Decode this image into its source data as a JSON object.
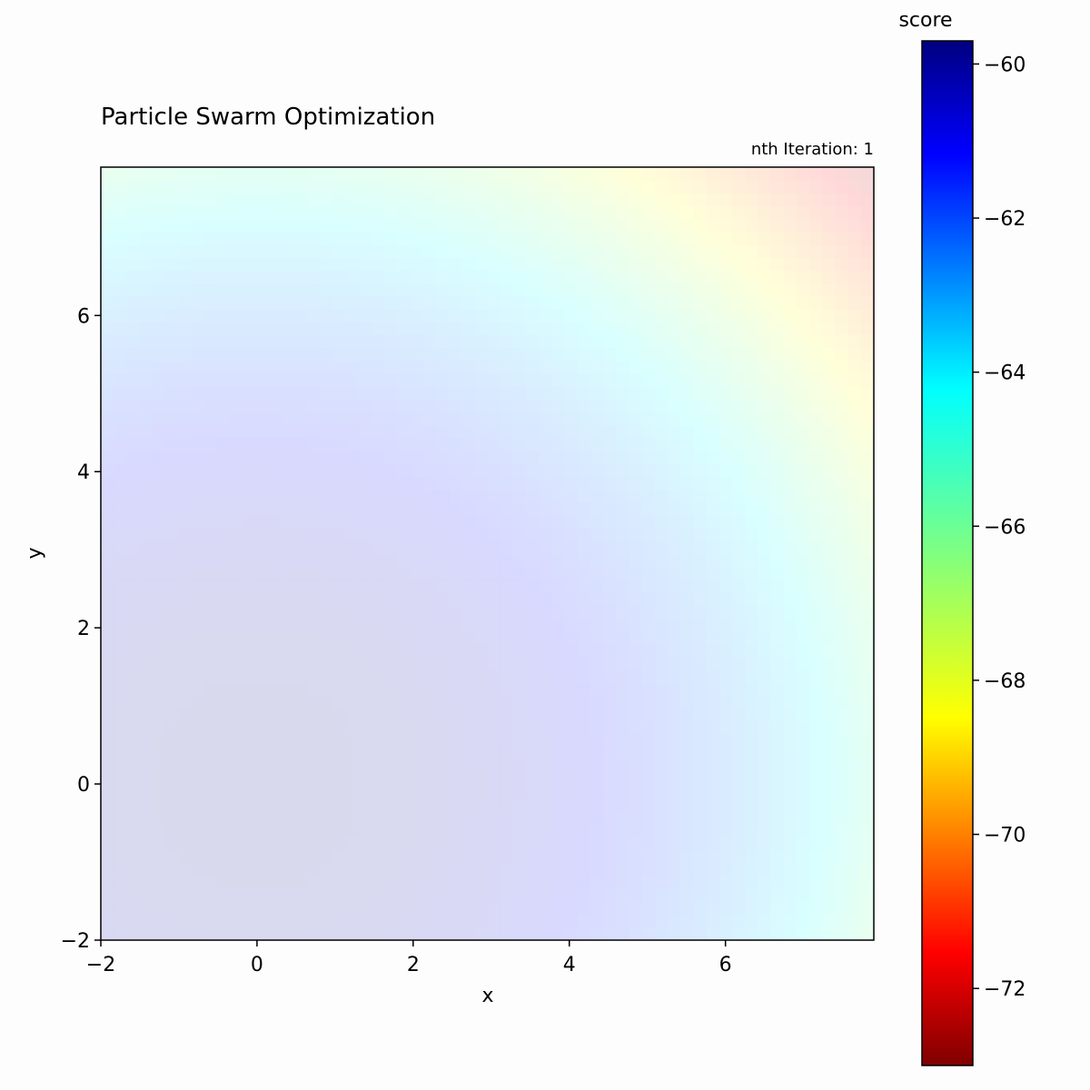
{
  "chart_data": {
    "type": "heatmap",
    "title": "Particle Swarm Optimization",
    "annotation": "nth Iteration: 1",
    "xlabel": "x",
    "ylabel": "y",
    "xlim": [
      -2,
      7.9
    ],
    "ylim": [
      -2,
      7.9
    ],
    "x_ticks": [
      -2,
      0,
      2,
      4,
      6
    ],
    "y_ticks": [
      -2,
      0,
      2,
      4,
      6
    ],
    "x_tick_labels": [
      "−2",
      "0",
      "2",
      "4",
      "6"
    ],
    "y_tick_labels": [
      "−2",
      "0",
      "2",
      "4",
      "6"
    ],
    "grid": false,
    "surface_alpha": 0.15,
    "surface_description_values": {
      "min_region_center": [
        0,
        0
      ],
      "min_value": -59.8,
      "max_region_center": [
        7.9,
        7.9
      ],
      "max_value": -72.5
    },
    "colorbar": {
      "label": "score",
      "colormap": "jet_r",
      "range": [
        -73.0,
        -59.7
      ],
      "ticks": [
        -60,
        -62,
        -64,
        -66,
        -68,
        -70,
        -72
      ],
      "tick_labels": [
        "−60",
        "−62",
        "−64",
        "−66",
        "−68",
        "−70",
        "−72"
      ],
      "colors": [
        "#800000",
        "#ff0000",
        "#ff8000",
        "#ffff00",
        "#80ff80",
        "#00ffff",
        "#0080ff",
        "#0000ff",
        "#000080"
      ]
    }
  }
}
